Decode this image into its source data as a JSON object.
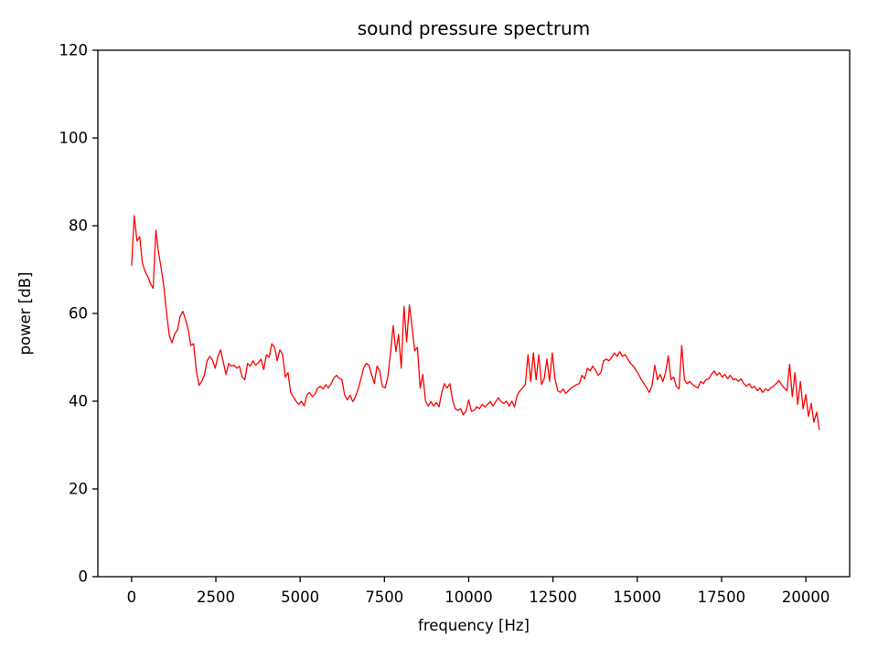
{
  "figure": {
    "title": "sound pressure spectrum",
    "xlabel": "frequency [Hz]",
    "ylabel": "power [dB]"
  },
  "chart_data": {
    "type": "line",
    "title": "sound pressure spectrum",
    "xlabel": "frequency [Hz]",
    "ylabel": "power [dB]",
    "xlim": [
      -1000,
      21300
    ],
    "ylim": [
      0,
      120
    ],
    "xticks": [
      0,
      2500,
      5000,
      7500,
      10000,
      12500,
      15000,
      17500,
      20000
    ],
    "xtick_labels": [
      "0",
      "2500",
      "5000",
      "7500",
      "10000",
      "12500",
      "15000",
      "17500",
      "20000"
    ],
    "yticks": [
      0,
      20,
      40,
      60,
      80,
      100,
      120
    ],
    "ytick_labels": [
      "0",
      "20",
      "40",
      "60",
      "80",
      "100",
      "120"
    ],
    "grid": false,
    "line_color": "#ff0000",
    "axis_color": "#000000",
    "background_color": "#ffffff",
    "series": [
      {
        "name": "sound pressure spectrum",
        "x_start_hz": 0,
        "x_step_hz": 80,
        "power_db": [
          71.0,
          82.3,
          76.5,
          77.5,
          71.5,
          69.6,
          68.4,
          66.8,
          65.7,
          79.0,
          74.0,
          70.2,
          66.0,
          60.0,
          55.0,
          53.3,
          55.4,
          56.2,
          59.3,
          60.5,
          58.7,
          56.3,
          52.7,
          53.1,
          47.0,
          43.6,
          44.5,
          46.0,
          49.2,
          50.2,
          49.4,
          47.5,
          50.2,
          51.7,
          49.0,
          46.1,
          48.6,
          48.0,
          48.2,
          47.5,
          48.0,
          45.5,
          44.9,
          48.6,
          48.0,
          49.2,
          48.2,
          48.8,
          49.6,
          47.2,
          50.6,
          50.0,
          53.1,
          52.3,
          49.2,
          51.7,
          50.6,
          45.5,
          46.5,
          42.0,
          41.0,
          40.0,
          39.3,
          40.0,
          38.9,
          41.4,
          42.0,
          41.0,
          41.6,
          43.0,
          43.4,
          42.8,
          43.8,
          43.0,
          44.0,
          45.3,
          45.9,
          45.2,
          44.9,
          41.4,
          40.3,
          41.4,
          39.9,
          41.0,
          42.8,
          45.0,
          47.5,
          48.6,
          48.2,
          46.1,
          44.0,
          48.0,
          46.9,
          43.4,
          43.0,
          45.5,
          51.0,
          57.2,
          51.3,
          55.2,
          47.5,
          61.6,
          53.5,
          62.0,
          57.0,
          51.5,
          52.3,
          43.0,
          46.1,
          40.0,
          38.9,
          39.9,
          38.9,
          39.7,
          38.7,
          42.0,
          44.0,
          43.0,
          44.0,
          40.3,
          38.3,
          37.9,
          38.3,
          36.9,
          37.7,
          40.3,
          37.7,
          37.9,
          38.7,
          38.3,
          39.3,
          38.7,
          39.3,
          39.9,
          38.9,
          39.9,
          40.8,
          39.9,
          39.5,
          40.0,
          38.9,
          40.0,
          38.7,
          41.4,
          42.4,
          43.0,
          43.8,
          50.6,
          44.5,
          51.0,
          44.9,
          50.6,
          43.8,
          45.1,
          49.6,
          44.5,
          51.0,
          45.1,
          42.4,
          42.0,
          42.8,
          41.8,
          42.4,
          43.0,
          43.4,
          43.8,
          44.0,
          45.9,
          45.1,
          47.5,
          46.9,
          48.0,
          47.1,
          45.9,
          46.5,
          49.2,
          49.6,
          49.2,
          50.0,
          51.0,
          50.2,
          51.3,
          50.2,
          50.6,
          49.6,
          48.6,
          48.0,
          47.1,
          46.1,
          44.9,
          44.0,
          43.0,
          42.0,
          43.6,
          48.2,
          44.9,
          46.1,
          44.5,
          46.5,
          50.4,
          44.9,
          45.5,
          43.4,
          42.8,
          52.7,
          44.9,
          44.0,
          44.5,
          43.8,
          43.4,
          43.0,
          44.5,
          44.0,
          44.9,
          45.1,
          46.1,
          46.9,
          45.9,
          46.5,
          45.5,
          46.1,
          45.1,
          45.9,
          44.9,
          45.1,
          44.5,
          45.1,
          44.0,
          43.4,
          44.0,
          43.0,
          43.4,
          42.4,
          43.0,
          42.0,
          42.8,
          42.4,
          43.0,
          43.4,
          44.0,
          44.7,
          43.8,
          43.0,
          42.4,
          48.4,
          41.0,
          46.5,
          39.3,
          44.5,
          38.3,
          41.5,
          36.5,
          39.5,
          35.2,
          37.5,
          33.6
        ]
      }
    ]
  }
}
